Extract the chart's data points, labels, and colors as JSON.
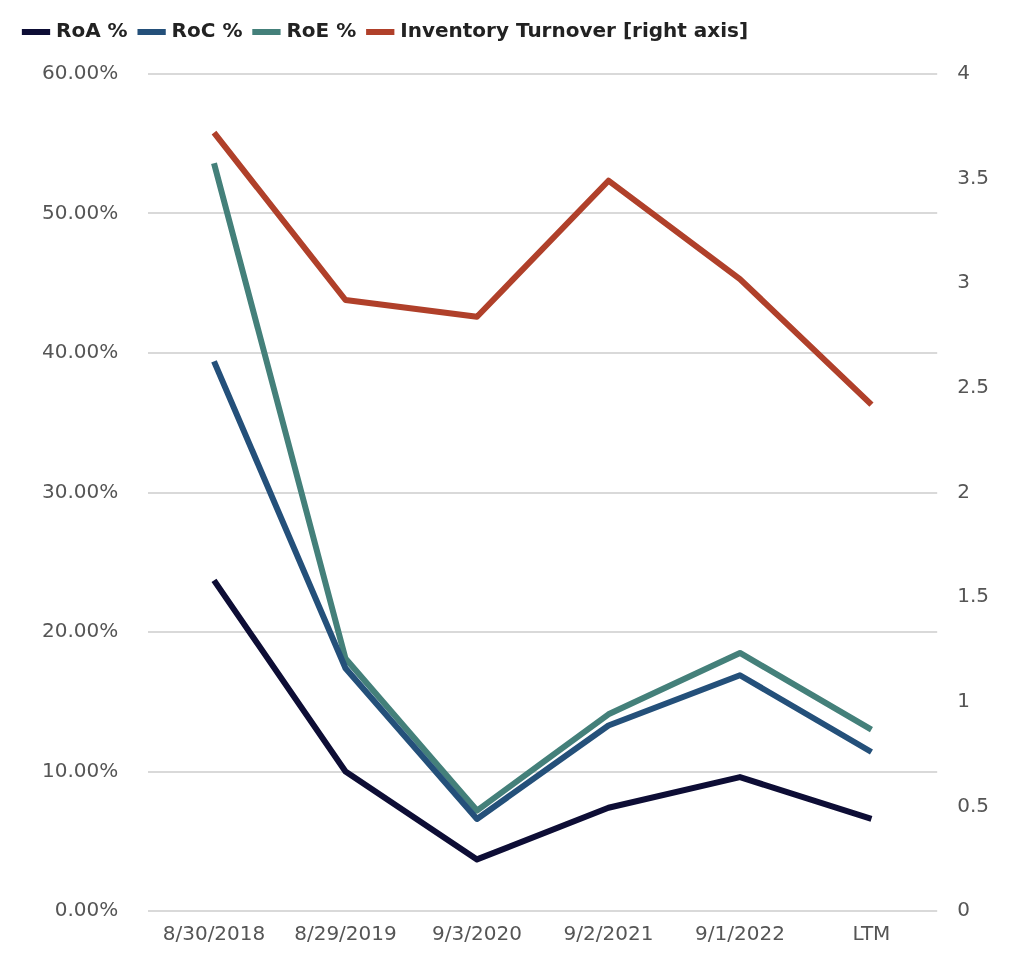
{
  "chart_data": {
    "type": "line",
    "categories": [
      "8/30/2018",
      "8/29/2019",
      "9/3/2020",
      "9/2/2021",
      "9/1/2022",
      "LTM"
    ],
    "series": [
      {
        "name": "RoA %",
        "color": "#0d0d35",
        "values": [
          23.7,
          10.0,
          3.7,
          7.4,
          9.6,
          6.6
        ]
      },
      {
        "name": "RoC %",
        "color": "#24507a",
        "values": [
          39.4,
          17.4,
          6.6,
          13.3,
          16.9,
          11.4
        ]
      },
      {
        "name": "RoE %",
        "color": "#44807a",
        "values": [
          53.6,
          18.1,
          7.2,
          14.1,
          18.5,
          13.0
        ]
      },
      {
        "name": "Inventory Turnover [right axis]",
        "color": "#b0402a",
        "axis": "y2",
        "values": [
          3.72,
          2.92,
          2.84,
          3.49,
          3.02,
          2.42
        ]
      }
    ],
    "ylim": [
      0,
      60
    ],
    "yticks": [
      {
        "value": 0,
        "label": "0.00%"
      },
      {
        "value": 10,
        "label": "10.00%"
      },
      {
        "value": 20,
        "label": "20.00%"
      },
      {
        "value": 30,
        "label": "30.00%"
      },
      {
        "value": 40,
        "label": "40.00%"
      },
      {
        "value": 50,
        "label": "50.00%"
      },
      {
        "value": 60,
        "label": "60.00%"
      }
    ],
    "y2lim": [
      0,
      4
    ],
    "y2ticks": [
      0,
      0.5,
      1,
      1.5,
      2,
      2.5,
      3,
      3.5,
      4
    ],
    "grid": "y",
    "legend": "top",
    "marker": "none",
    "line_style": "solid"
  }
}
